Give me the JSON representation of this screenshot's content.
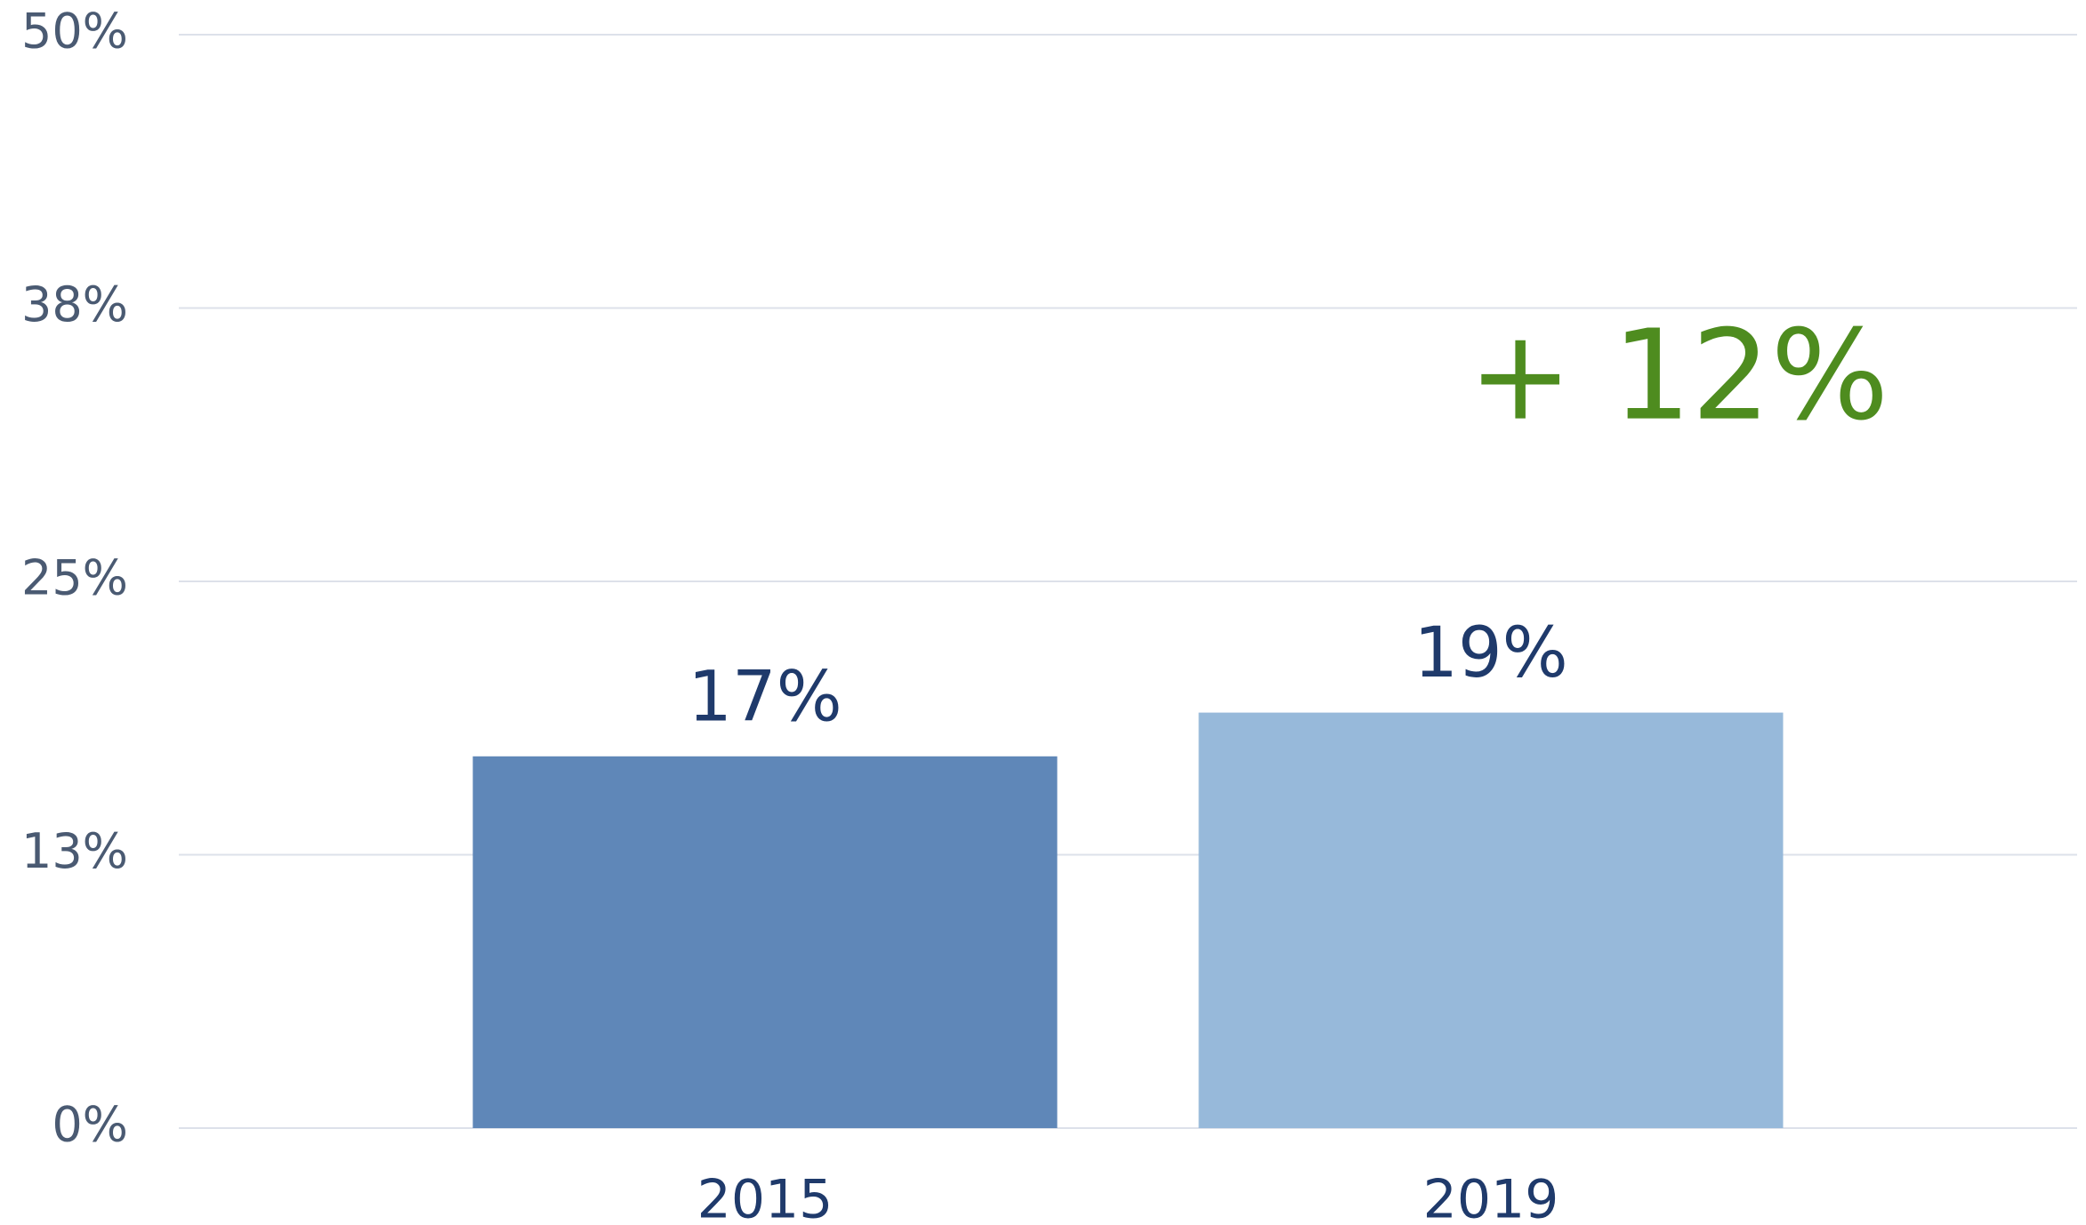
{
  "chart_data": {
    "type": "bar",
    "categories": [
      "2015",
      "2019"
    ],
    "series": [
      {
        "values": [
          17,
          19
        ],
        "value_labels": [
          "17%",
          "19%"
        ],
        "colors": [
          "#5f87b8",
          "#97b9da"
        ]
      }
    ],
    "ylim": [
      0,
      50
    ],
    "yticks": [
      {
        "value": 0,
        "label": "0%"
      },
      {
        "value": 12.5,
        "label": "13%"
      },
      {
        "value": 25,
        "label": "25%"
      },
      {
        "value": 37.5,
        "label": "38%"
      },
      {
        "value": 50,
        "label": "50%"
      }
    ],
    "grid": true,
    "annotation": "+ 12%",
    "annotation_color": "#4e8c1f"
  }
}
